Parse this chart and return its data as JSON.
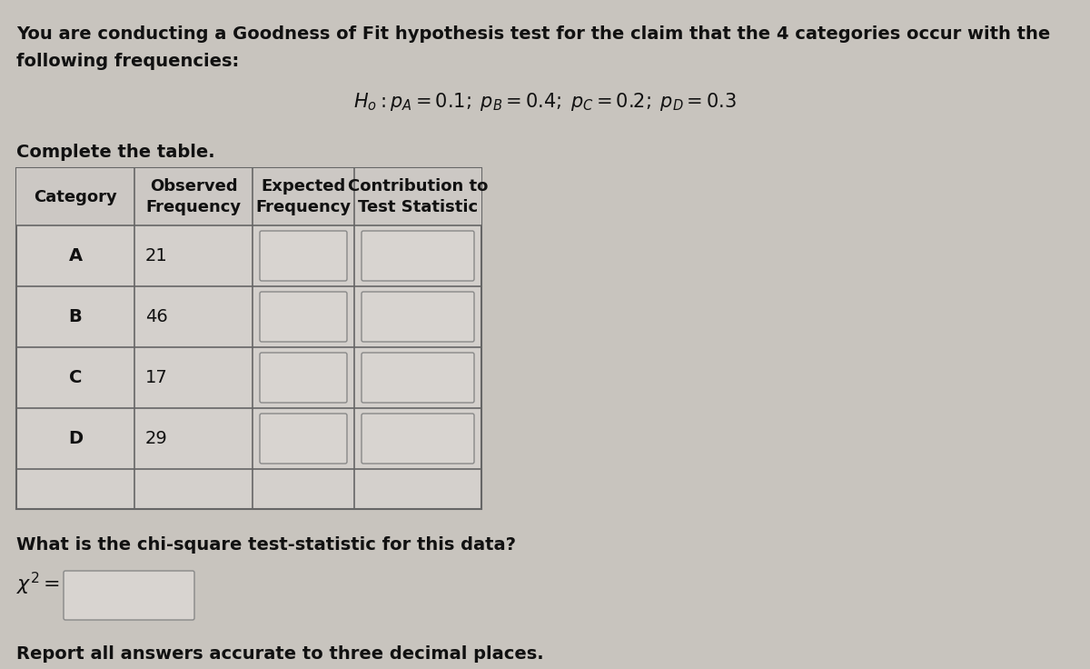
{
  "title_line1": "You are conducting a Goodness of Fit hypothesis test for the claim that the 4 categories occur with the",
  "title_line2": "following frequencies:",
  "complete_table_label": "Complete the table.",
  "col_headers": [
    "Category",
    "Observed\nFrequency",
    "Expected\nFrequency",
    "Contribution to\nTest Statistic"
  ],
  "categories": [
    "A",
    "B",
    "C",
    "D"
  ],
  "observed": [
    21,
    46,
    17,
    29
  ],
  "chi_sq_label": "What is the chi-square test-statistic for this data?",
  "report_label": "Report all answers accurate to three decimal places.",
  "bg_color": "#c8c4be",
  "table_line_color": "#666666",
  "input_box_color": "#c0bcb8",
  "input_box_edge": "#888888",
  "text_color": "#111111",
  "font_size_title": 14,
  "font_size_header": 13,
  "font_size_cell": 14,
  "font_size_hyp": 15,
  "font_size_bottom": 14
}
